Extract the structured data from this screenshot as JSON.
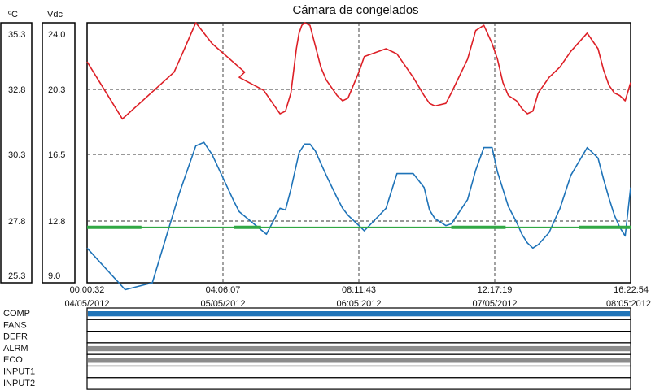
{
  "chart_data": {
    "type": "line",
    "title": "Cámara de congelados",
    "left_axis": {
      "unit": "ºC",
      "ticks": [
        "35.3",
        "32.8",
        "30.3",
        "27.8",
        "25.3"
      ],
      "ylim": [
        25.3,
        35.3
      ]
    },
    "right_axis": {
      "unit": "Vdc",
      "ticks": [
        "24.0",
        "20.3",
        "16.5",
        "12.8",
        "9.0"
      ],
      "ylim": [
        9.0,
        24.0
      ]
    },
    "x_ticks": [
      {
        "time": "00:00:32",
        "date": "04/05/2012"
      },
      {
        "time": "04:06:07",
        "date": "05/05/2012"
      },
      {
        "time": "08:11:43",
        "date": "06:05:2012"
      },
      {
        "time": "12:17:19",
        "date": "07/05/2012"
      },
      {
        "time": "16:22:54",
        "date": "08:05:2012"
      }
    ],
    "grid": true,
    "series": [
      {
        "color": "#dd1f26",
        "axis": "ºC",
        "x": [
          0.0,
          0.065,
          0.16,
          0.175,
          0.2,
          0.215,
          0.23,
          0.29,
          0.28,
          0.325,
          0.355,
          0.365,
          0.375,
          0.385,
          0.39,
          0.395,
          0.4,
          0.41,
          0.42,
          0.43,
          0.44,
          0.46,
          0.47,
          0.48,
          0.5,
          0.51,
          0.55,
          0.57,
          0.6,
          0.62,
          0.63,
          0.64,
          0.66,
          0.67,
          0.7,
          0.715,
          0.73,
          0.745,
          0.755,
          0.765,
          0.775,
          0.79,
          0.8,
          0.81,
          0.82,
          0.83,
          0.85,
          0.87,
          0.89,
          0.92,
          0.94,
          0.95,
          0.96,
          0.97,
          0.98,
          0.99,
          1.0
        ],
        "y": [
          33.8,
          31.6,
          33.4,
          34.1,
          35.3,
          34.9,
          34.5,
          33.4,
          33.2,
          32.7,
          31.8,
          31.9,
          32.6,
          34.3,
          34.9,
          35.2,
          35.3,
          35.2,
          34.4,
          33.6,
          33.1,
          32.5,
          32.3,
          32.4,
          33.4,
          34.0,
          34.3,
          34.1,
          33.2,
          32.5,
          32.2,
          32.1,
          32.2,
          32.6,
          33.9,
          35.0,
          35.2,
          34.5,
          33.9,
          33.0,
          32.5,
          32.3,
          32.0,
          31.8,
          31.9,
          32.6,
          33.2,
          33.6,
          34.2,
          34.9,
          34.3,
          33.5,
          32.9,
          32.6,
          32.5,
          32.3,
          33.0
        ]
      },
      {
        "color": "#1e73b8",
        "axis": "Vdc",
        "x": [
          0.0,
          0.07,
          0.12,
          0.17,
          0.2,
          0.215,
          0.23,
          0.27,
          0.28,
          0.33,
          0.355,
          0.365,
          0.375,
          0.39,
          0.4,
          0.41,
          0.42,
          0.43,
          0.44,
          0.46,
          0.47,
          0.48,
          0.5,
          0.51,
          0.55,
          0.57,
          0.6,
          0.62,
          0.63,
          0.64,
          0.66,
          0.67,
          0.7,
          0.715,
          0.73,
          0.745,
          0.755,
          0.765,
          0.775,
          0.79,
          0.8,
          0.81,
          0.82,
          0.83,
          0.85,
          0.87,
          0.89,
          0.92,
          0.94,
          0.95,
          0.96,
          0.97,
          0.98,
          0.99,
          1.0
        ],
        "y": [
          11.0,
          8.6,
          9.0,
          14.2,
          16.9,
          17.1,
          16.4,
          13.7,
          13.1,
          11.8,
          13.3,
          13.2,
          14.4,
          16.5,
          17.0,
          17.0,
          16.6,
          15.9,
          15.2,
          13.9,
          13.3,
          12.9,
          12.3,
          12.0,
          13.3,
          15.3,
          15.3,
          14.5,
          13.2,
          12.7,
          12.3,
          12.4,
          13.8,
          15.5,
          16.8,
          16.8,
          15.4,
          14.4,
          13.4,
          12.5,
          11.8,
          11.3,
          11.0,
          11.2,
          11.9,
          13.3,
          15.2,
          16.8,
          16.2,
          15.0,
          13.9,
          12.9,
          12.2,
          11.7,
          14.5
        ]
      },
      {
        "color": "#31a844",
        "axis": "Vdc",
        "x": [
          0.0,
          1.0
        ],
        "y": [
          12.2,
          12.2
        ]
      }
    ]
  },
  "digital": {
    "labels": [
      "COMP",
      "FANS",
      "DEFR",
      "ALRM",
      "ECO",
      "INPUT1",
      "INPUT2"
    ],
    "fills": [
      {
        "color": "#1e73b8",
        "level": 1
      },
      {
        "color": "#ffffff",
        "level": 0
      },
      {
        "color": "#ffffff",
        "level": 0
      },
      {
        "color": "#8c8c8c",
        "level": 1
      },
      {
        "color": "#8c8c8c",
        "level": 1
      },
      {
        "color": "#ffffff",
        "level": 0
      },
      {
        "color": "#ffffff",
        "level": 0
      }
    ]
  }
}
